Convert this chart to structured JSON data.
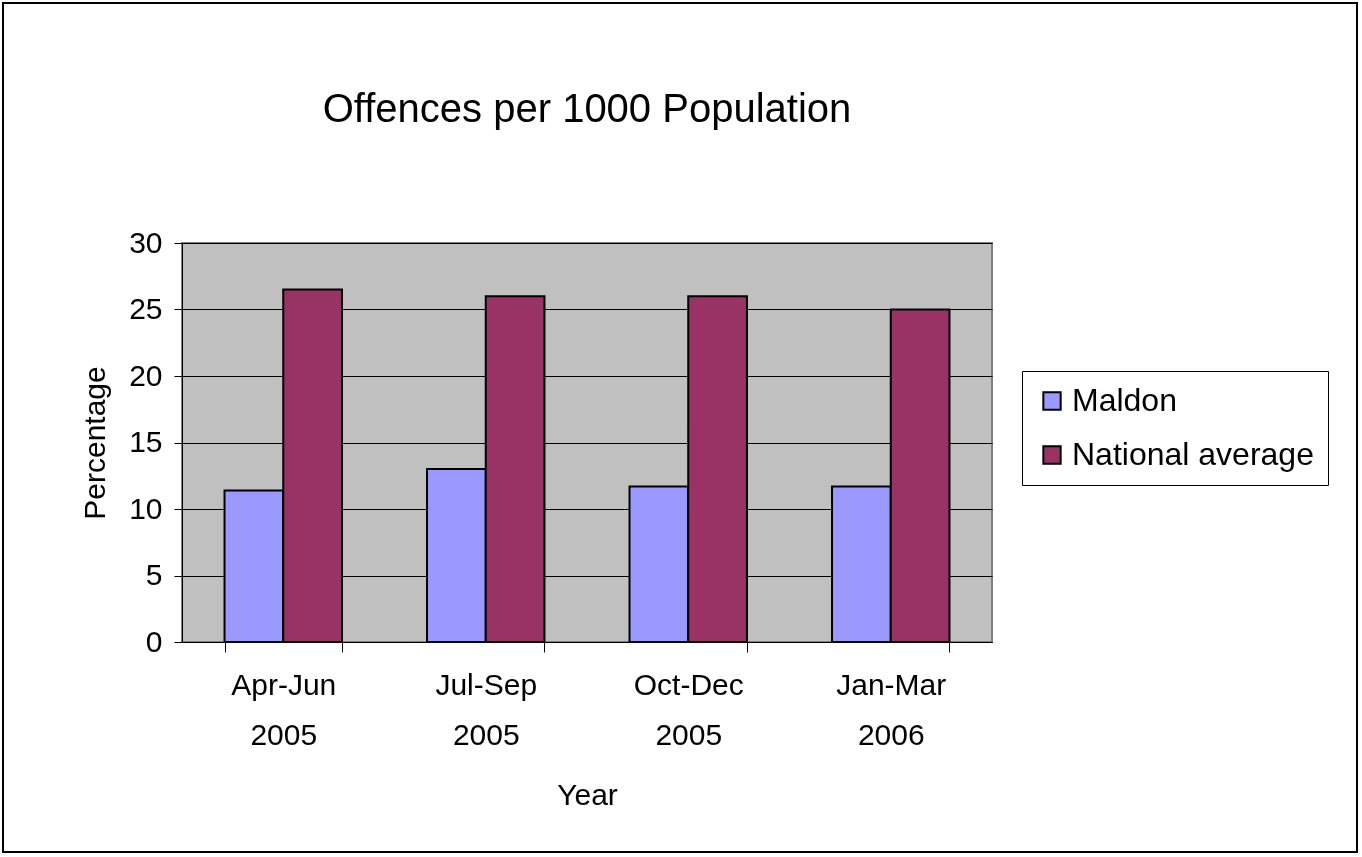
{
  "chart_data": {
    "type": "bar",
    "title": "Offences per 1000 Population",
    "xlabel": "Year",
    "ylabel": "Percentage",
    "categories": [
      "Apr-Jun 2005",
      "Jul-Sep 2005",
      "Oct-Dec 2005",
      "Jan-Mar 2006"
    ],
    "series": [
      {
        "name": "Maldon",
        "color": "#9999ff",
        "values": [
          11.4,
          13,
          11.7,
          11.7
        ]
      },
      {
        "name": "National average",
        "color": "#993366",
        "values": [
          26.5,
          26,
          26,
          25
        ]
      }
    ],
    "ylim": [
      0,
      30
    ],
    "yticks": [
      0,
      5,
      10,
      15,
      20,
      25,
      30
    ],
    "grid": "y",
    "legend": "right"
  }
}
